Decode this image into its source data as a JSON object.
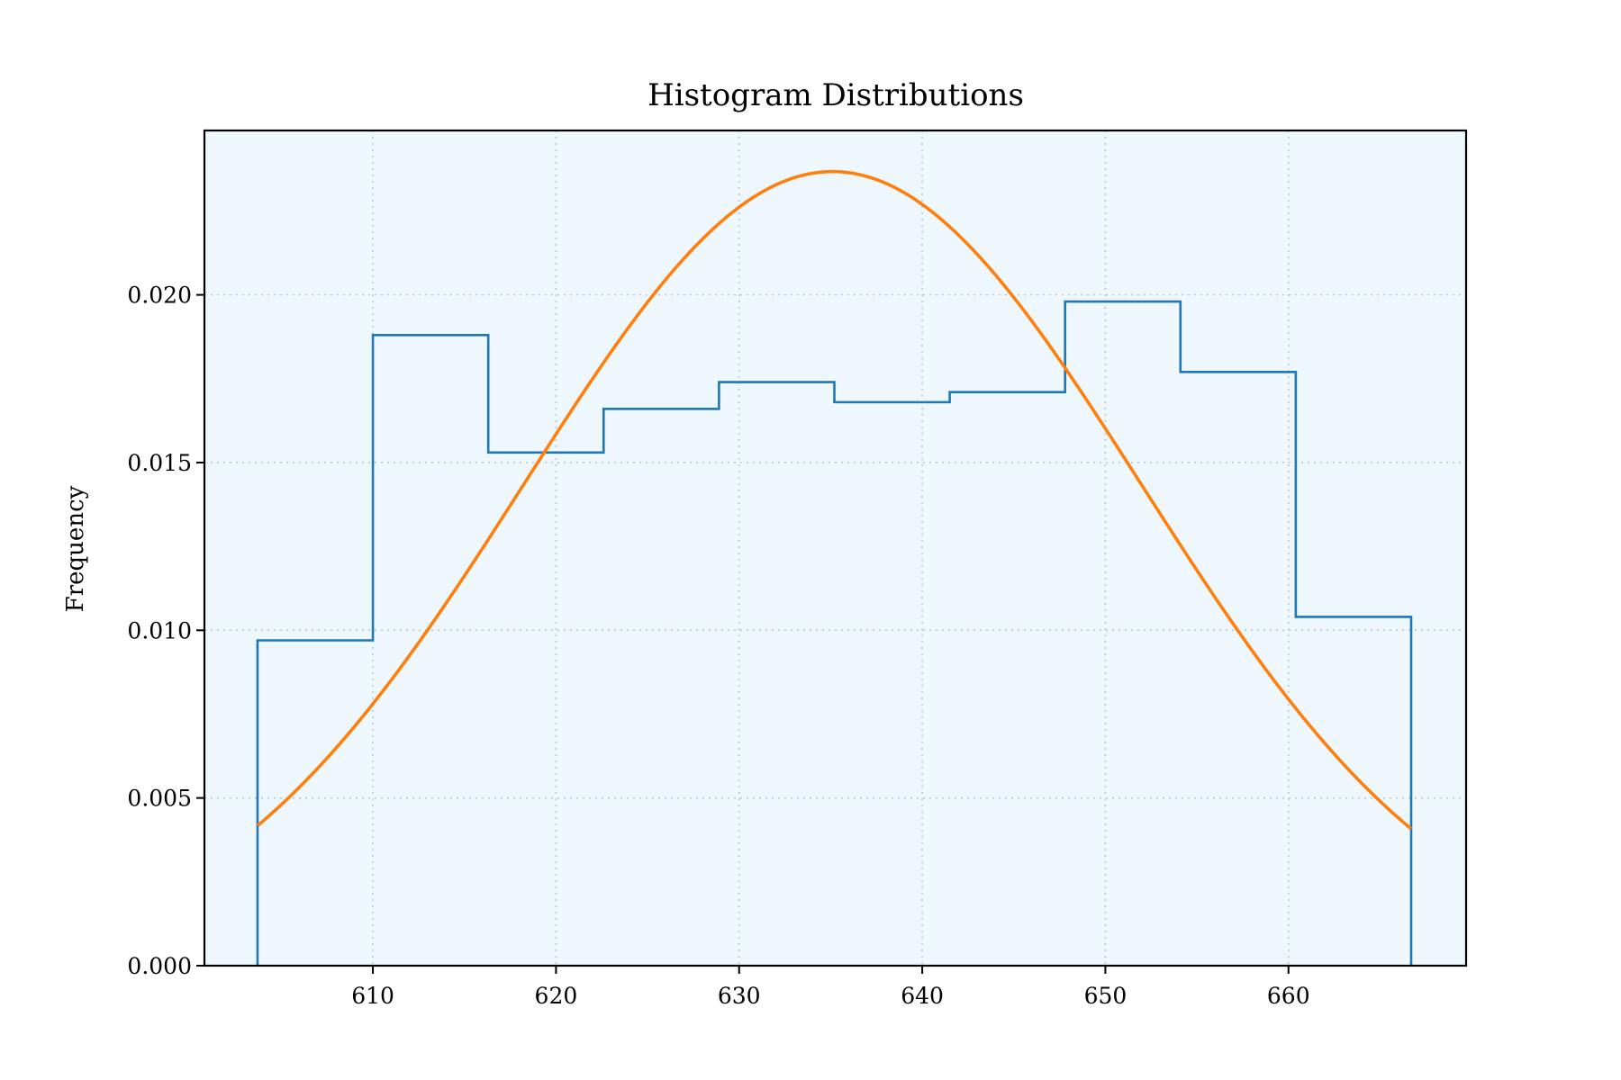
{
  "chart_data": {
    "type": "histogram",
    "title": "Histogram Distributions",
    "xlabel": "",
    "ylabel": "Frequency",
    "xlim": [
      600.8,
      669.7
    ],
    "ylim": [
      0,
      0.0249
    ],
    "x_ticks": [
      610,
      620,
      630,
      640,
      650,
      660
    ],
    "y_ticks": [
      0.0,
      0.005,
      0.01,
      0.015,
      0.02
    ],
    "y_tick_format_decimals": 3,
    "grid": true,
    "background_color": "#eef7fc",
    "histogram": {
      "color": "#1f77b4",
      "bin_edges": [
        603.7,
        610.0,
        616.3,
        622.6,
        628.9,
        635.2,
        641.5,
        647.8,
        654.1,
        660.4,
        666.7
      ],
      "densities": [
        0.0097,
        0.0188,
        0.0153,
        0.0166,
        0.0174,
        0.0168,
        0.0171,
        0.0198,
        0.0177,
        0.0104
      ]
    },
    "fit_curve": {
      "type": "normal-pdf",
      "color": "#ff7f0e",
      "mean": 635.1,
      "std": 16.85,
      "x_range": [
        603.7,
        666.7
      ]
    }
  }
}
